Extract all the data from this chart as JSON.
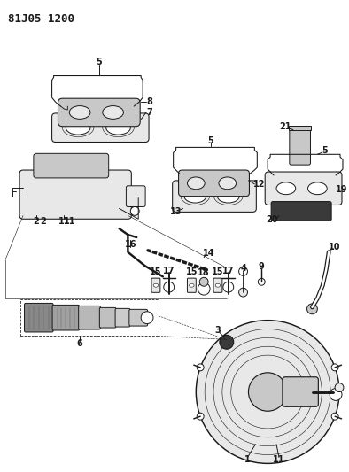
{
  "title": "81J05 1200",
  "bg_color": "#ffffff",
  "lc": "#1a1a1a",
  "fig_w": 3.94,
  "fig_h": 5.33,
  "dpi": 100,
  "fs": 7,
  "fs_title": 9
}
